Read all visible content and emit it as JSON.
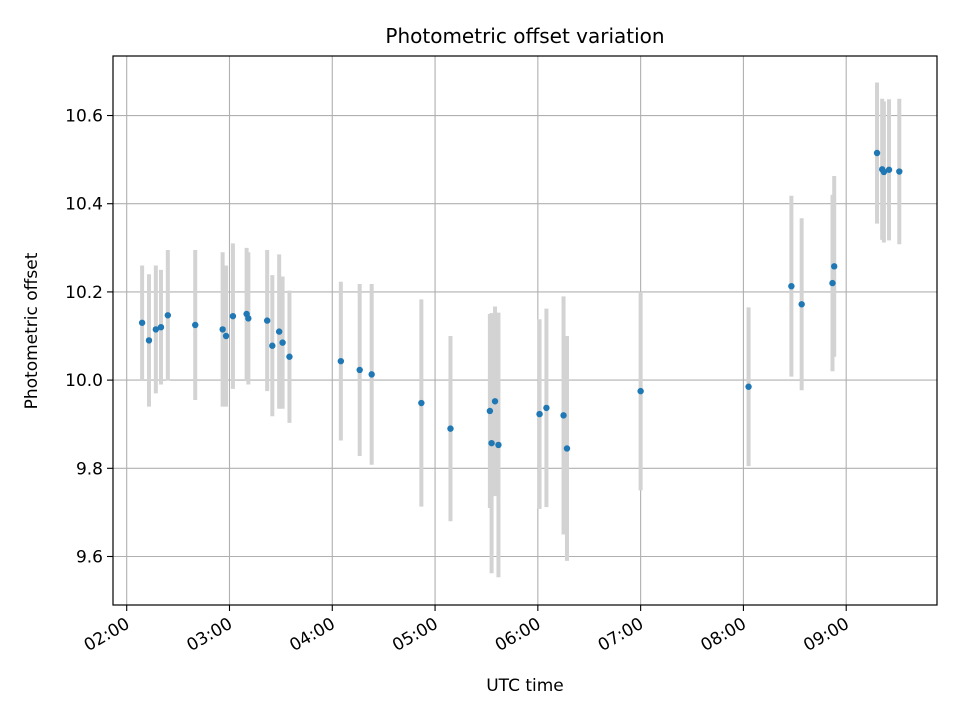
{
  "chart_data": {
    "type": "scatter",
    "title": "Photometric offset variation",
    "xlabel": "UTC time",
    "ylabel": "Photometric offset",
    "x_unit": "HH:MM UTC",
    "xlim": [
      "01:52",
      "09:53"
    ],
    "ylim": [
      9.49,
      10.735
    ],
    "x_ticks": [
      "02:00",
      "03:00",
      "04:00",
      "05:00",
      "06:00",
      "07:00",
      "08:00",
      "09:00"
    ],
    "y_ticks": [
      9.6,
      9.8,
      10.0,
      10.2,
      10.4,
      10.6
    ],
    "y_tick_labels": [
      "9.6",
      "9.8",
      "10.0",
      "10.2",
      "10.4",
      "10.6"
    ],
    "grid": true,
    "colors": {
      "point": "#1f77b4",
      "errorbar": "#d3d3d3",
      "grid": "#b0b0b0",
      "axes": "#000000"
    },
    "series": [
      {
        "points": [
          {
            "x": "02:09",
            "y": 10.13,
            "err": 0.13
          },
          {
            "x": "02:13",
            "y": 10.09,
            "err": 0.15
          },
          {
            "x": "02:17",
            "y": 10.115,
            "err": 0.145
          },
          {
            "x": "02:20",
            "y": 10.12,
            "err": 0.13
          },
          {
            "x": "02:24",
            "y": 10.147,
            "err": 0.148
          },
          {
            "x": "02:40",
            "y": 10.125,
            "err": 0.17
          },
          {
            "x": "02:56",
            "y": 10.115,
            "err": 0.175
          },
          {
            "x": "02:58",
            "y": 10.1,
            "err": 0.16
          },
          {
            "x": "03:02",
            "y": 10.145,
            "err": 0.165
          },
          {
            "x": "03:10",
            "y": 10.15,
            "err": 0.15
          },
          {
            "x": "03:11",
            "y": 10.14,
            "err": 0.15
          },
          {
            "x": "03:22",
            "y": 10.135,
            "err": 0.16
          },
          {
            "x": "03:25",
            "y": 10.078,
            "err": 0.16
          },
          {
            "x": "03:29",
            "y": 10.11,
            "err": 0.175
          },
          {
            "x": "03:31",
            "y": 10.085,
            "err": 0.15
          },
          {
            "x": "03:35",
            "y": 10.053,
            "err": 0.15
          },
          {
            "x": "04:05",
            "y": 10.043,
            "err": 0.18
          },
          {
            "x": "04:16",
            "y": 10.023,
            "err": 0.195
          },
          {
            "x": "04:23",
            "y": 10.013,
            "err": 0.205
          },
          {
            "x": "04:52",
            "y": 9.948,
            "err": 0.235
          },
          {
            "x": "05:09",
            "y": 9.89,
            "err": 0.21
          },
          {
            "x": "05:32",
            "y": 9.93,
            "err": 0.22
          },
          {
            "x": "05:33",
            "y": 9.857,
            "err": 0.295
          },
          {
            "x": "05:35",
            "y": 9.952,
            "err": 0.215
          },
          {
            "x": "05:37",
            "y": 9.853,
            "err": 0.3
          },
          {
            "x": "06:01",
            "y": 9.923,
            "err": 0.215
          },
          {
            "x": "06:05",
            "y": 9.937,
            "err": 0.225
          },
          {
            "x": "06:15",
            "y": 9.92,
            "err": 0.27
          },
          {
            "x": "06:17",
            "y": 9.845,
            "err": 0.255
          },
          {
            "x": "07:00",
            "y": 9.975,
            "err": 0.225
          },
          {
            "x": "08:03",
            "y": 9.985,
            "err": 0.18
          },
          {
            "x": "08:28",
            "y": 10.213,
            "err": 0.205
          },
          {
            "x": "08:34",
            "y": 10.172,
            "err": 0.195
          },
          {
            "x": "08:52",
            "y": 10.22,
            "err": 0.2
          },
          {
            "x": "08:53",
            "y": 10.258,
            "err": 0.205
          },
          {
            "x": "09:18",
            "y": 10.515,
            "err": 0.16
          },
          {
            "x": "09:21",
            "y": 10.478,
            "err": 0.16
          },
          {
            "x": "09:22",
            "y": 10.472,
            "err": 0.16
          },
          {
            "x": "09:25",
            "y": 10.477,
            "err": 0.16
          },
          {
            "x": "09:31",
            "y": 10.473,
            "err": 0.165
          }
        ]
      }
    ]
  }
}
